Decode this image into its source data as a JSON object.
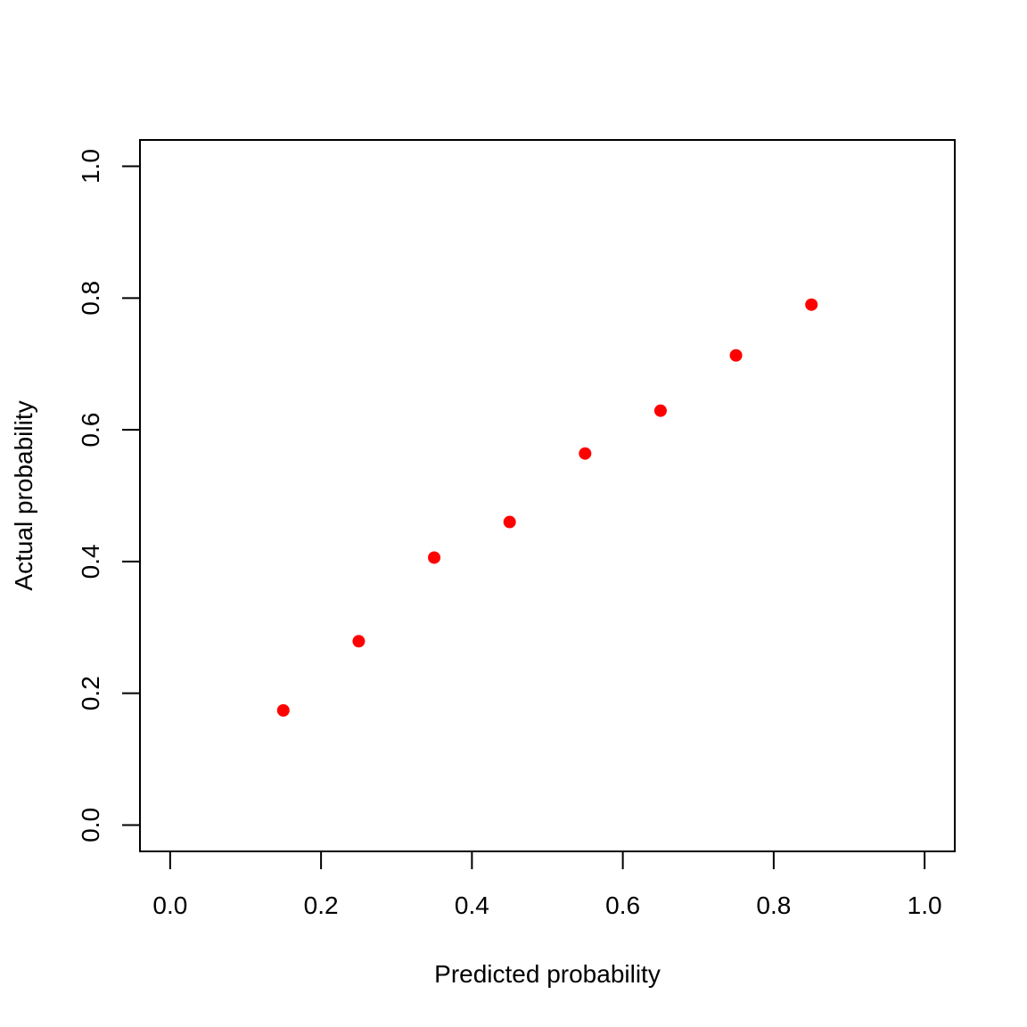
{
  "chart_data": {
    "type": "scatter",
    "title": "",
    "xlabel": "Predicted probability",
    "ylabel": "Actual probability",
    "xlim": [
      -0.04,
      1.04
    ],
    "ylim": [
      -0.04,
      1.04
    ],
    "x_ticks": [
      "0.0",
      "0.2",
      "0.4",
      "0.6",
      "0.8",
      "1.0"
    ],
    "y_ticks": [
      "0.0",
      "0.2",
      "0.4",
      "0.6",
      "0.8",
      "1.0"
    ],
    "grid": false,
    "legend": "none",
    "point_color": "#ff0000",
    "x": [
      0.15,
      0.25,
      0.35,
      0.45,
      0.55,
      0.65,
      0.75,
      0.85
    ],
    "y": [
      0.174,
      0.279,
      0.406,
      0.46,
      0.564,
      0.629,
      0.713,
      0.79
    ]
  }
}
